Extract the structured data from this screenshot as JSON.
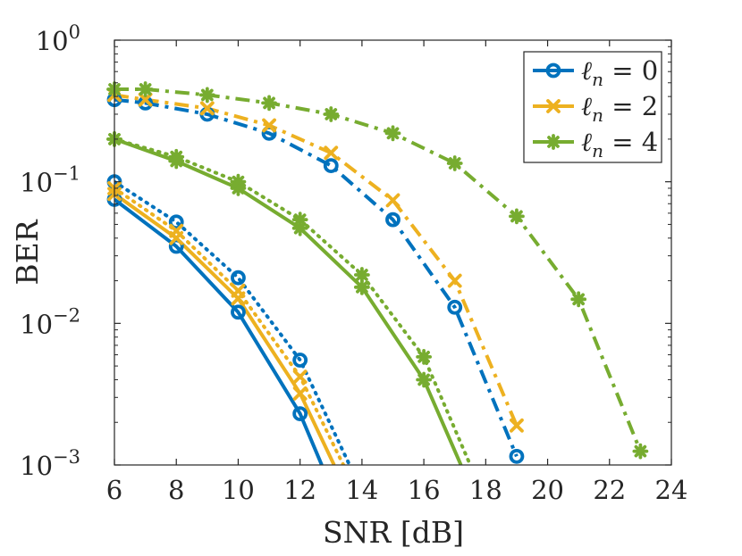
{
  "chart_data": {
    "type": "line",
    "xlabel": "SNR [dB]",
    "ylabel": "BER",
    "x_scale": "linear",
    "y_scale": "log",
    "xlim": [
      6,
      24
    ],
    "ylim": [
      0.001,
      1
    ],
    "xticks": [
      6,
      8,
      10,
      12,
      14,
      16,
      18,
      20,
      22,
      24
    ],
    "yticks": [
      {
        "value": 1,
        "label": "10",
        "exp": "0"
      },
      {
        "value": 0.1,
        "label": "10",
        "exp": "−1"
      },
      {
        "value": 0.01,
        "label": "10",
        "exp": "−2"
      },
      {
        "value": 0.001,
        "label": "10",
        "exp": "−3"
      }
    ],
    "grid": false,
    "legend_position": "top-right",
    "legend": [
      {
        "label": "ℓn = 0",
        "symbol": "ℓ",
        "sub": "n",
        "rest": " = 0",
        "color": "#0072BD",
        "marker": "circle"
      },
      {
        "label": "ℓn = 2",
        "symbol": "ℓ",
        "sub": "n",
        "rest": " = 2",
        "color": "#EDB120",
        "marker": "x"
      },
      {
        "label": "ℓn = 4",
        "symbol": "ℓ",
        "sub": "n",
        "rest": " = 4",
        "color": "#77AC30",
        "marker": "asterisk"
      }
    ],
    "series": [
      {
        "name": "ℓn = 0 solid",
        "color": "#0072BD",
        "marker": "circle",
        "style": "solid",
        "x": [
          6,
          8,
          10,
          12,
          12.7
        ],
        "y": [
          0.075,
          0.035,
          0.012,
          0.0023,
          0.001
        ]
      },
      {
        "name": "ℓn = 0 dotted",
        "color": "#0072BD",
        "marker": "circle",
        "style": "dotted",
        "x": [
          6,
          8,
          10,
          12,
          13.6
        ],
        "y": [
          0.1,
          0.052,
          0.021,
          0.0055,
          0.001
        ]
      },
      {
        "name": "ℓn = 0 dash-dot",
        "color": "#0072BD",
        "marker": "circle",
        "style": "dashdot",
        "x": [
          6,
          7,
          9,
          11,
          13,
          15,
          17,
          19
        ],
        "y": [
          0.38,
          0.36,
          0.3,
          0.22,
          0.13,
          0.054,
          0.013,
          0.00115
        ]
      },
      {
        "name": "ℓn = 2 solid",
        "color": "#EDB120",
        "marker": "x",
        "style": "solid",
        "x": [
          6,
          8,
          10,
          12,
          13.1
        ],
        "y": [
          0.082,
          0.04,
          0.015,
          0.0032,
          0.001
        ]
      },
      {
        "name": "ℓn = 2 dotted",
        "color": "#EDB120",
        "marker": "x",
        "style": "dotted",
        "x": [
          6,
          8,
          10,
          12,
          13.4
        ],
        "y": [
          0.09,
          0.045,
          0.017,
          0.0042,
          0.001
        ]
      },
      {
        "name": "ℓn = 2 dash-dot",
        "color": "#EDB120",
        "marker": "x",
        "style": "dashdot",
        "x": [
          6,
          7,
          9,
          11,
          13,
          15,
          17,
          19
        ],
        "y": [
          0.41,
          0.38,
          0.33,
          0.25,
          0.16,
          0.074,
          0.02,
          0.0019
        ]
      },
      {
        "name": "ℓn = 4 solid",
        "color": "#77AC30",
        "marker": "asterisk",
        "style": "solid",
        "x": [
          6,
          8,
          10,
          12,
          14,
          16,
          17.2
        ],
        "y": [
          0.2,
          0.14,
          0.09,
          0.047,
          0.018,
          0.004,
          0.001
        ]
      },
      {
        "name": "ℓn = 4 dotted",
        "color": "#77AC30",
        "marker": "asterisk",
        "style": "dotted",
        "x": [
          6,
          8,
          10,
          12,
          14,
          16,
          17.5
        ],
        "y": [
          0.2,
          0.15,
          0.1,
          0.054,
          0.022,
          0.0058,
          0.001
        ]
      },
      {
        "name": "ℓn = 4 dash-dot",
        "color": "#77AC30",
        "marker": "asterisk",
        "style": "dashdot",
        "x": [
          6,
          7,
          9,
          11,
          13,
          15,
          17,
          19,
          21,
          23
        ],
        "y": [
          0.45,
          0.45,
          0.41,
          0.36,
          0.3,
          0.22,
          0.135,
          0.057,
          0.0148,
          0.00125
        ]
      }
    ]
  }
}
